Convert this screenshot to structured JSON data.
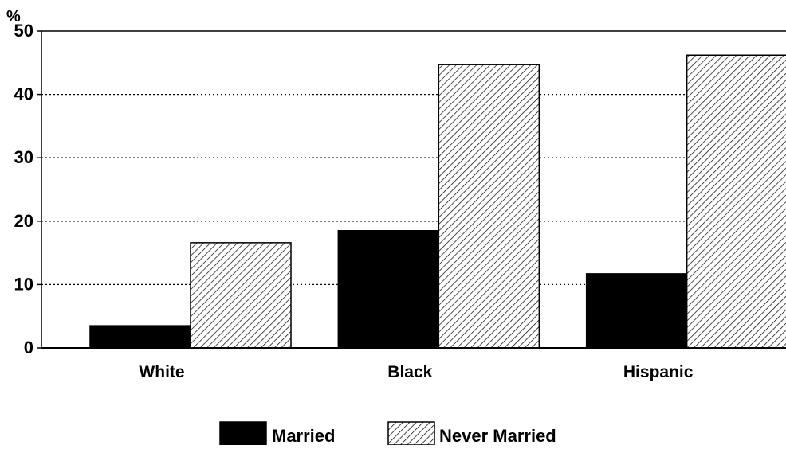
{
  "chart_data": {
    "type": "bar",
    "title": "",
    "xlabel": "",
    "ylabel": "%",
    "categories": [
      "White",
      "Black",
      "Hispanic"
    ],
    "series": [
      {
        "name": "Married",
        "values": [
          3.5,
          18.5,
          11.7
        ],
        "fill": "solid",
        "color": "#000000"
      },
      {
        "name": "Never Married",
        "values": [
          16.6,
          44.7,
          46.2
        ],
        "fill": "diagonal-hatch",
        "color": "#000000"
      }
    ],
    "ylim": [
      0,
      50
    ],
    "yticks": [
      0,
      10,
      20,
      30,
      40,
      50
    ],
    "grid": "horizontal-dotted",
    "legend": "bottom-center"
  }
}
